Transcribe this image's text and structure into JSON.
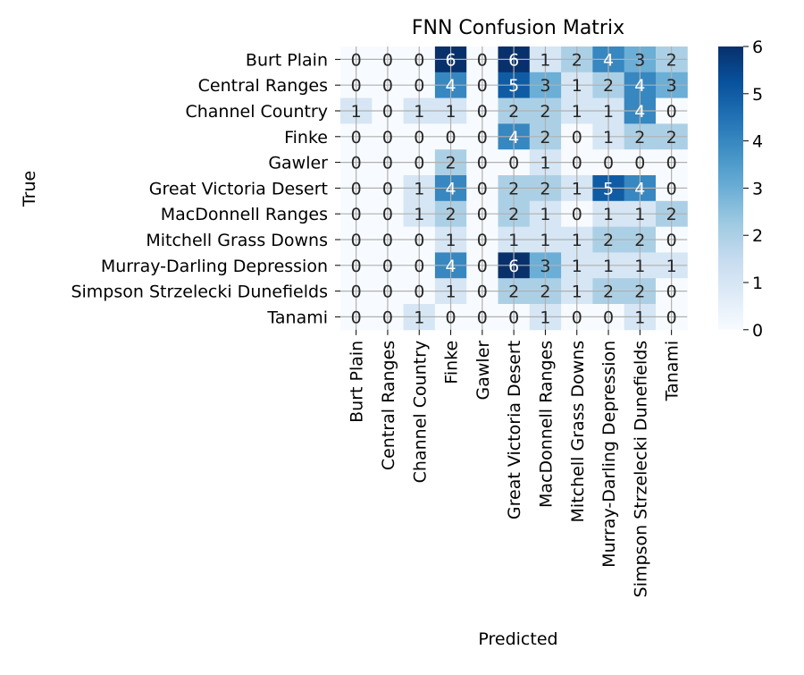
{
  "chart_data": {
    "type": "heatmap",
    "title": "FNN Confusion Matrix",
    "xlabel": "Predicted",
    "ylabel": "True",
    "x_categories": [
      "Burt Plain",
      "Central Ranges",
      "Channel Country",
      "Finke",
      "Gawler",
      "Great Victoria Desert",
      "MacDonnell Ranges",
      "Mitchell Grass Downs",
      "Murray-Darling Depression",
      "Simpson Strzelecki Dunefields",
      "Tanami"
    ],
    "y_categories": [
      "Burt Plain",
      "Central Ranges",
      "Channel Country",
      "Finke",
      "Gawler",
      "Great Victoria Desert",
      "MacDonnell Ranges",
      "Mitchell Grass Downs",
      "Murray-Darling Depression",
      "Simpson Strzelecki Dunefields",
      "Tanami"
    ],
    "values": [
      [
        0,
        0,
        0,
        6,
        0,
        6,
        1,
        2,
        4,
        3,
        2
      ],
      [
        0,
        0,
        0,
        4,
        0,
        5,
        3,
        1,
        2,
        4,
        3
      ],
      [
        1,
        0,
        1,
        1,
        0,
        2,
        2,
        1,
        1,
        4,
        0
      ],
      [
        0,
        0,
        0,
        0,
        0,
        4,
        2,
        0,
        1,
        2,
        2
      ],
      [
        0,
        0,
        0,
        2,
        0,
        0,
        1,
        0,
        0,
        0,
        0
      ],
      [
        0,
        0,
        1,
        4,
        0,
        2,
        2,
        1,
        5,
        4,
        0
      ],
      [
        0,
        0,
        1,
        2,
        0,
        2,
        1,
        0,
        1,
        1,
        2
      ],
      [
        0,
        0,
        0,
        1,
        0,
        1,
        1,
        1,
        2,
        2,
        0
      ],
      [
        0,
        0,
        0,
        4,
        0,
        6,
        3,
        1,
        1,
        1,
        1
      ],
      [
        0,
        0,
        0,
        1,
        0,
        2,
        2,
        1,
        2,
        2,
        0
      ],
      [
        0,
        0,
        1,
        0,
        0,
        0,
        1,
        0,
        0,
        1,
        0
      ]
    ],
    "colormap": "Blues",
    "vmin": 0,
    "vmax": 6,
    "colorbar_ticks": [
      "0",
      "1",
      "2",
      "3",
      "4",
      "5",
      "6"
    ],
    "grid": true
  }
}
